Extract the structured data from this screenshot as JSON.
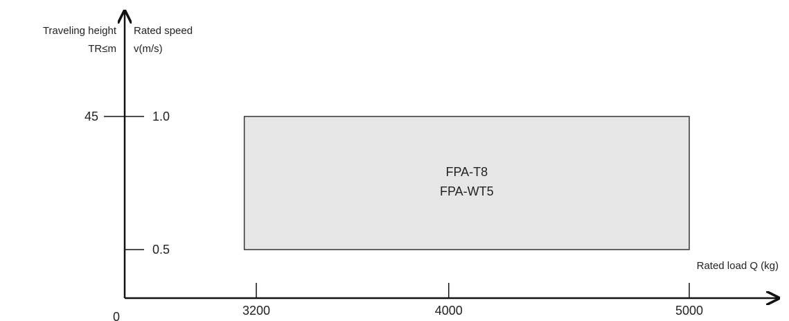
{
  "chart_data": {
    "type": "area",
    "title": "",
    "xlabel": "Rated load Q (kg)",
    "ylabel_left_line1": "Traveling height",
    "ylabel_left_line2": "TR≤m",
    "ylabel_right_line1": "Rated speed",
    "ylabel_right_line2": "v(m/s)",
    "origin_label": "0",
    "x_ticks": [
      {
        "value": 3200,
        "label": "3200"
      },
      {
        "value": 4000,
        "label": "4000"
      },
      {
        "value": 5000,
        "label": "5000"
      }
    ],
    "speed_ticks": [
      {
        "value": 1.0,
        "label": "1.0"
      },
      {
        "value": 0.5,
        "label": "0.5"
      }
    ],
    "height_ticks": [
      {
        "value": 45,
        "label": "45",
        "at_speed": 1.0
      }
    ],
    "regions": [
      {
        "x_min": 3150,
        "x_max": 5000,
        "speed_min": 0.5,
        "speed_max": 1.0,
        "labels": [
          "FPA-T8",
          "FPA-WT5"
        ],
        "fill": "#e6e6e6",
        "stroke": "#333333"
      }
    ],
    "grid": false,
    "legend": "none"
  },
  "colors": {
    "axis": "#111111",
    "text": "#222222"
  }
}
